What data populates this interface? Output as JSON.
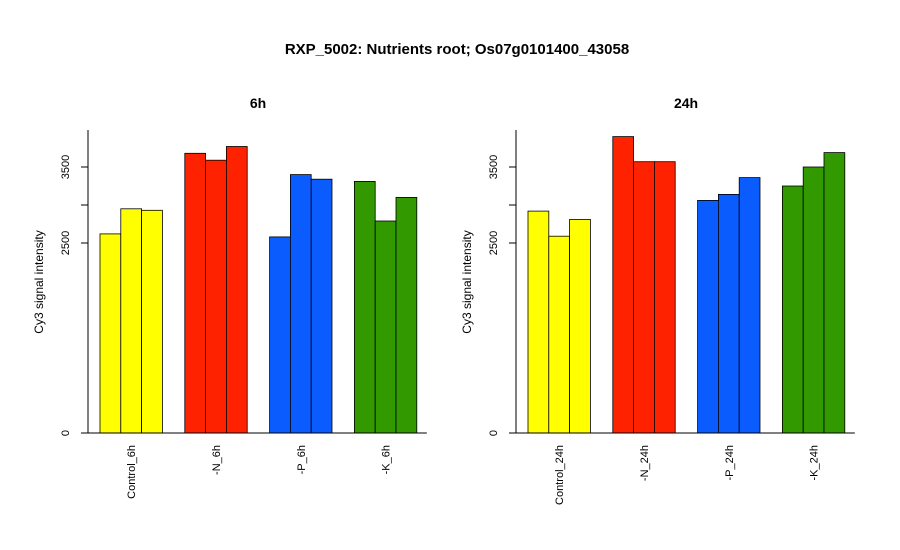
{
  "title": "RXP_5002: Nutrients root; Os07g0101400_43058",
  "colors": {
    "Control": "#ffff00",
    "N": "#ff2200",
    "P": "#0a5cff",
    "K": "#339900"
  },
  "chart_data": [
    {
      "type": "bar",
      "title": "6h",
      "ylabel": "Cy3 signal intensity",
      "ylim": [
        0,
        4000
      ],
      "yticks": [
        "0",
        "2500",
        "3500"
      ],
      "categories": [
        "Control_6h",
        "-N_6h",
        "-P_6h",
        "-K_6h"
      ],
      "groups": [
        {
          "category": "Control_6h",
          "color_key": "Control",
          "values": [
            2620,
            2950,
            2930
          ]
        },
        {
          "category": "-N_6h",
          "color_key": "N",
          "values": [
            3680,
            3590,
            3770
          ]
        },
        {
          "category": "-P_6h",
          "color_key": "P",
          "values": [
            2580,
            3400,
            3340
          ]
        },
        {
          "category": "-K_6h",
          "color_key": "K",
          "values": [
            3310,
            2790,
            3100
          ]
        }
      ]
    },
    {
      "type": "bar",
      "title": "24h",
      "ylabel": "Cy3 signal intensity",
      "ylim": [
        0,
        4000
      ],
      "yticks": [
        "0",
        "2500",
        "3500"
      ],
      "categories": [
        "Control_24h",
        "-N_24h",
        "-P_24h",
        "-K_24h"
      ],
      "groups": [
        {
          "category": "Control_24h",
          "color_key": "Control",
          "values": [
            2920,
            2590,
            2810
          ]
        },
        {
          "category": "-N_24h",
          "color_key": "N",
          "values": [
            3900,
            3570,
            3570
          ]
        },
        {
          "category": "-P_24h",
          "color_key": "P",
          "values": [
            3060,
            3140,
            3360
          ]
        },
        {
          "category": "-K_24h",
          "color_key": "K",
          "values": [
            3250,
            3500,
            3690
          ]
        }
      ]
    }
  ]
}
